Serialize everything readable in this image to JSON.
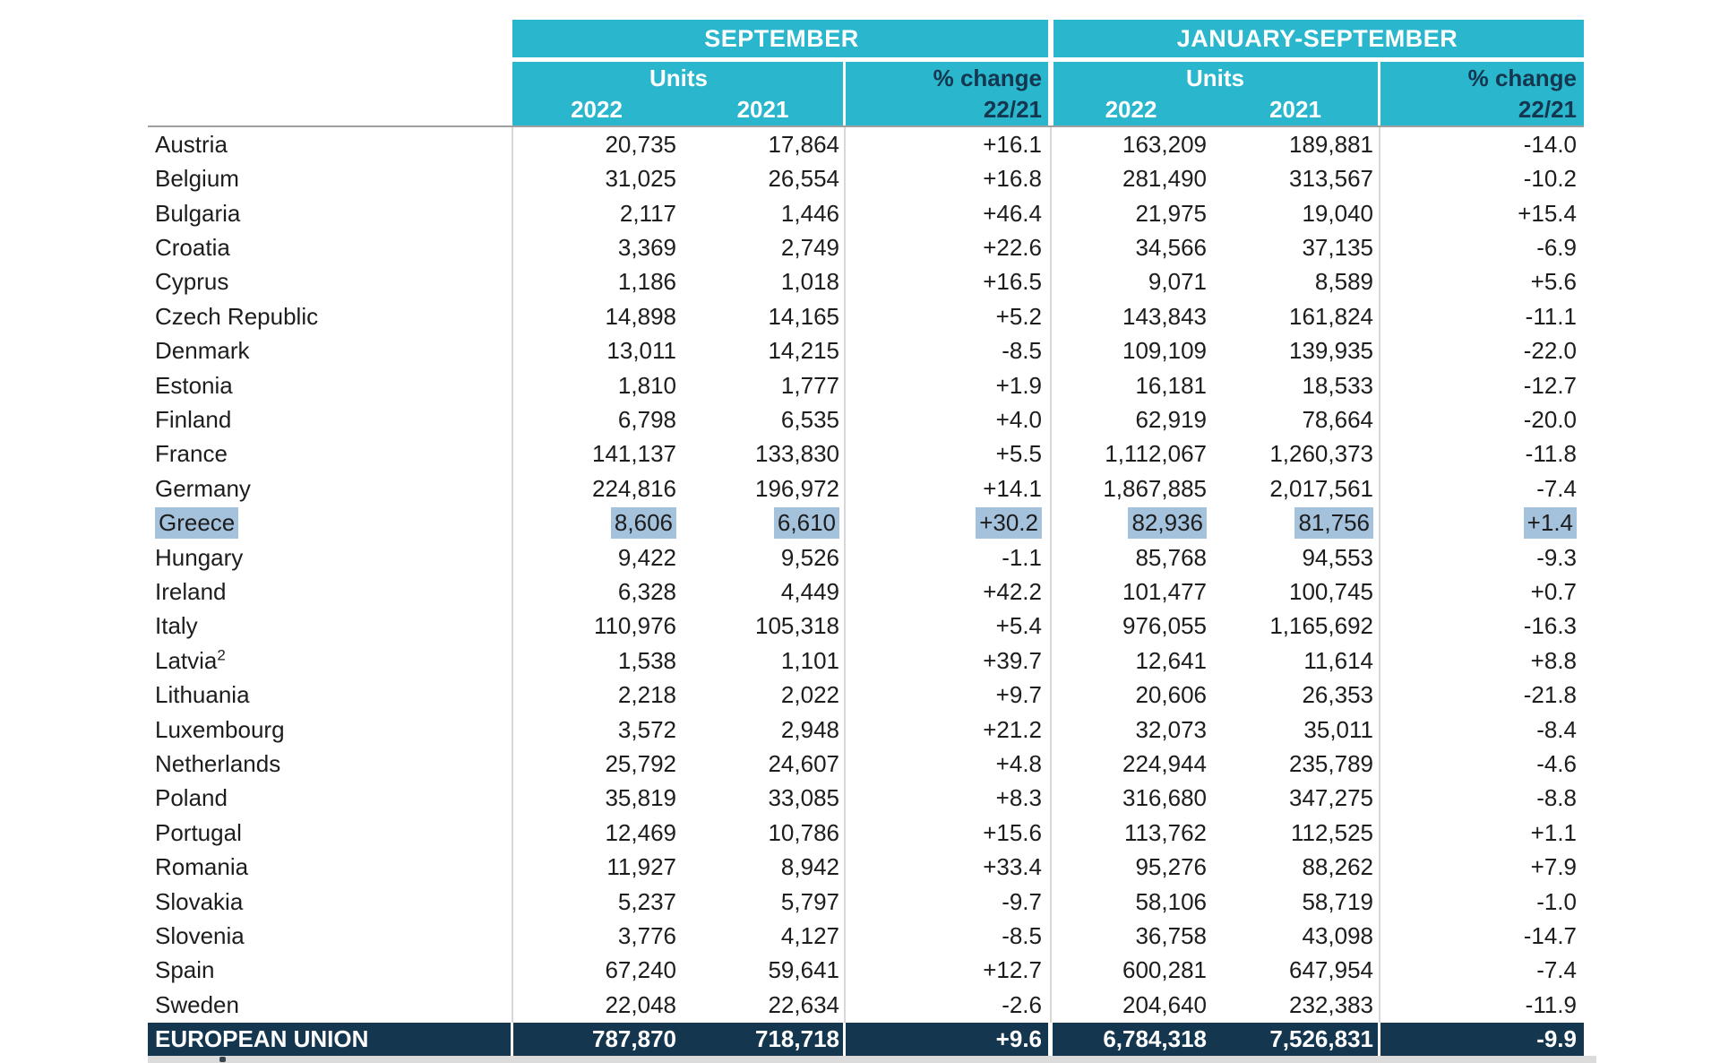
{
  "table": {
    "period_headers": {
      "september": "SEPTEMBER",
      "ytd": "JANUARY-SEPTEMBER"
    },
    "column_headers": {
      "units": "Units",
      "pct_change": "% change",
      "year_2022": "2022",
      "year_2021": "2021",
      "ratio": "22/21"
    },
    "rows": [
      {
        "country": "Austria",
        "sep_2022": "20,735",
        "sep_2021": "17,864",
        "sep_pct": "+16.1",
        "ytd_2022": "163,209",
        "ytd_2021": "189,881",
        "ytd_pct": "-14.0"
      },
      {
        "country": "Belgium",
        "sep_2022": "31,025",
        "sep_2021": "26,554",
        "sep_pct": "+16.8",
        "ytd_2022": "281,490",
        "ytd_2021": "313,567",
        "ytd_pct": "-10.2"
      },
      {
        "country": "Bulgaria",
        "sep_2022": "2,117",
        "sep_2021": "1,446",
        "sep_pct": "+46.4",
        "ytd_2022": "21,975",
        "ytd_2021": "19,040",
        "ytd_pct": "+15.4"
      },
      {
        "country": "Croatia",
        "sep_2022": "3,369",
        "sep_2021": "2,749",
        "sep_pct": "+22.6",
        "ytd_2022": "34,566",
        "ytd_2021": "37,135",
        "ytd_pct": "-6.9"
      },
      {
        "country": "Cyprus",
        "sep_2022": "1,186",
        "sep_2021": "1,018",
        "sep_pct": "+16.5",
        "ytd_2022": "9,071",
        "ytd_2021": "8,589",
        "ytd_pct": "+5.6"
      },
      {
        "country": "Czech Republic",
        "sep_2022": "14,898",
        "sep_2021": "14,165",
        "sep_pct": "+5.2",
        "ytd_2022": "143,843",
        "ytd_2021": "161,824",
        "ytd_pct": "-11.1"
      },
      {
        "country": "Denmark",
        "sep_2022": "13,011",
        "sep_2021": "14,215",
        "sep_pct": "-8.5",
        "ytd_2022": "109,109",
        "ytd_2021": "139,935",
        "ytd_pct": "-22.0"
      },
      {
        "country": "Estonia",
        "sep_2022": "1,810",
        "sep_2021": "1,777",
        "sep_pct": "+1.9",
        "ytd_2022": "16,181",
        "ytd_2021": "18,533",
        "ytd_pct": "-12.7"
      },
      {
        "country": "Finland",
        "sep_2022": "6,798",
        "sep_2021": "6,535",
        "sep_pct": "+4.0",
        "ytd_2022": "62,919",
        "ytd_2021": "78,664",
        "ytd_pct": "-20.0"
      },
      {
        "country": "France",
        "sep_2022": "141,137",
        "sep_2021": "133,830",
        "sep_pct": "+5.5",
        "ytd_2022": "1,112,067",
        "ytd_2021": "1,260,373",
        "ytd_pct": "-11.8"
      },
      {
        "country": "Germany",
        "sep_2022": "224,816",
        "sep_2021": "196,972",
        "sep_pct": "+14.1",
        "ytd_2022": "1,867,885",
        "ytd_2021": "2,017,561",
        "ytd_pct": "-7.4"
      },
      {
        "country": "Greece",
        "sep_2022": "8,606",
        "sep_2021": "6,610",
        "sep_pct": "+30.2",
        "ytd_2022": "82,936",
        "ytd_2021": "81,756",
        "ytd_pct": "+1.4",
        "highlighted": true
      },
      {
        "country": "Hungary",
        "sep_2022": "9,422",
        "sep_2021": "9,526",
        "sep_pct": "-1.1",
        "ytd_2022": "85,768",
        "ytd_2021": "94,553",
        "ytd_pct": "-9.3"
      },
      {
        "country": "Ireland",
        "sep_2022": "6,328",
        "sep_2021": "4,449",
        "sep_pct": "+42.2",
        "ytd_2022": "101,477",
        "ytd_2021": "100,745",
        "ytd_pct": "+0.7"
      },
      {
        "country": "Italy",
        "sep_2022": "110,976",
        "sep_2021": "105,318",
        "sep_pct": "+5.4",
        "ytd_2022": "976,055",
        "ytd_2021": "1,165,692",
        "ytd_pct": "-16.3"
      },
      {
        "country": "Latvia",
        "superscript": "2",
        "sep_2022": "1,538",
        "sep_2021": "1,101",
        "sep_pct": "+39.7",
        "ytd_2022": "12,641",
        "ytd_2021": "11,614",
        "ytd_pct": "+8.8"
      },
      {
        "country": "Lithuania",
        "sep_2022": "2,218",
        "sep_2021": "2,022",
        "sep_pct": "+9.7",
        "ytd_2022": "20,606",
        "ytd_2021": "26,353",
        "ytd_pct": "-21.8"
      },
      {
        "country": "Luxembourg",
        "sep_2022": "3,572",
        "sep_2021": "2,948",
        "sep_pct": "+21.2",
        "ytd_2022": "32,073",
        "ytd_2021": "35,011",
        "ytd_pct": "-8.4"
      },
      {
        "country": "Netherlands",
        "sep_2022": "25,792",
        "sep_2021": "24,607",
        "sep_pct": "+4.8",
        "ytd_2022": "224,944",
        "ytd_2021": "235,789",
        "ytd_pct": "-4.6"
      },
      {
        "country": "Poland",
        "sep_2022": "35,819",
        "sep_2021": "33,085",
        "sep_pct": "+8.3",
        "ytd_2022": "316,680",
        "ytd_2021": "347,275",
        "ytd_pct": "-8.8"
      },
      {
        "country": "Portugal",
        "sep_2022": "12,469",
        "sep_2021": "10,786",
        "sep_pct": "+15.6",
        "ytd_2022": "113,762",
        "ytd_2021": "112,525",
        "ytd_pct": "+1.1"
      },
      {
        "country": "Romania",
        "sep_2022": "11,927",
        "sep_2021": "8,942",
        "sep_pct": "+33.4",
        "ytd_2022": "95,276",
        "ytd_2021": "88,262",
        "ytd_pct": "+7.9"
      },
      {
        "country": "Slovakia",
        "sep_2022": "5,237",
        "sep_2021": "5,797",
        "sep_pct": "-9.7",
        "ytd_2022": "58,106",
        "ytd_2021": "58,719",
        "ytd_pct": "-1.0"
      },
      {
        "country": "Slovenia",
        "sep_2022": "3,776",
        "sep_2021": "4,127",
        "sep_pct": "-8.5",
        "ytd_2022": "36,758",
        "ytd_2021": "43,098",
        "ytd_pct": "-14.7"
      },
      {
        "country": "Spain",
        "sep_2022": "67,240",
        "sep_2021": "59,641",
        "sep_pct": "+12.7",
        "ytd_2022": "600,281",
        "ytd_2021": "647,954",
        "ytd_pct": "-7.4"
      },
      {
        "country": "Sweden",
        "sep_2022": "22,048",
        "sep_2021": "22,634",
        "sep_pct": "-2.6",
        "ytd_2022": "204,640",
        "ytd_2021": "232,383",
        "ytd_pct": "-11.9"
      }
    ],
    "total_row": {
      "country": "EUROPEAN UNION",
      "sep_2022": "787,870",
      "sep_2021": "718,718",
      "sep_pct": "+9.6",
      "ytd_2022": "6,784,318",
      "ytd_2021": "7,526,831",
      "ytd_pct": "-9.9"
    }
  },
  "colors": {
    "header_cyan": "#2ab7cd",
    "navy": "#14364f",
    "selection_highlight": "#a5c2dd",
    "body_text": "#1d1d1d"
  }
}
